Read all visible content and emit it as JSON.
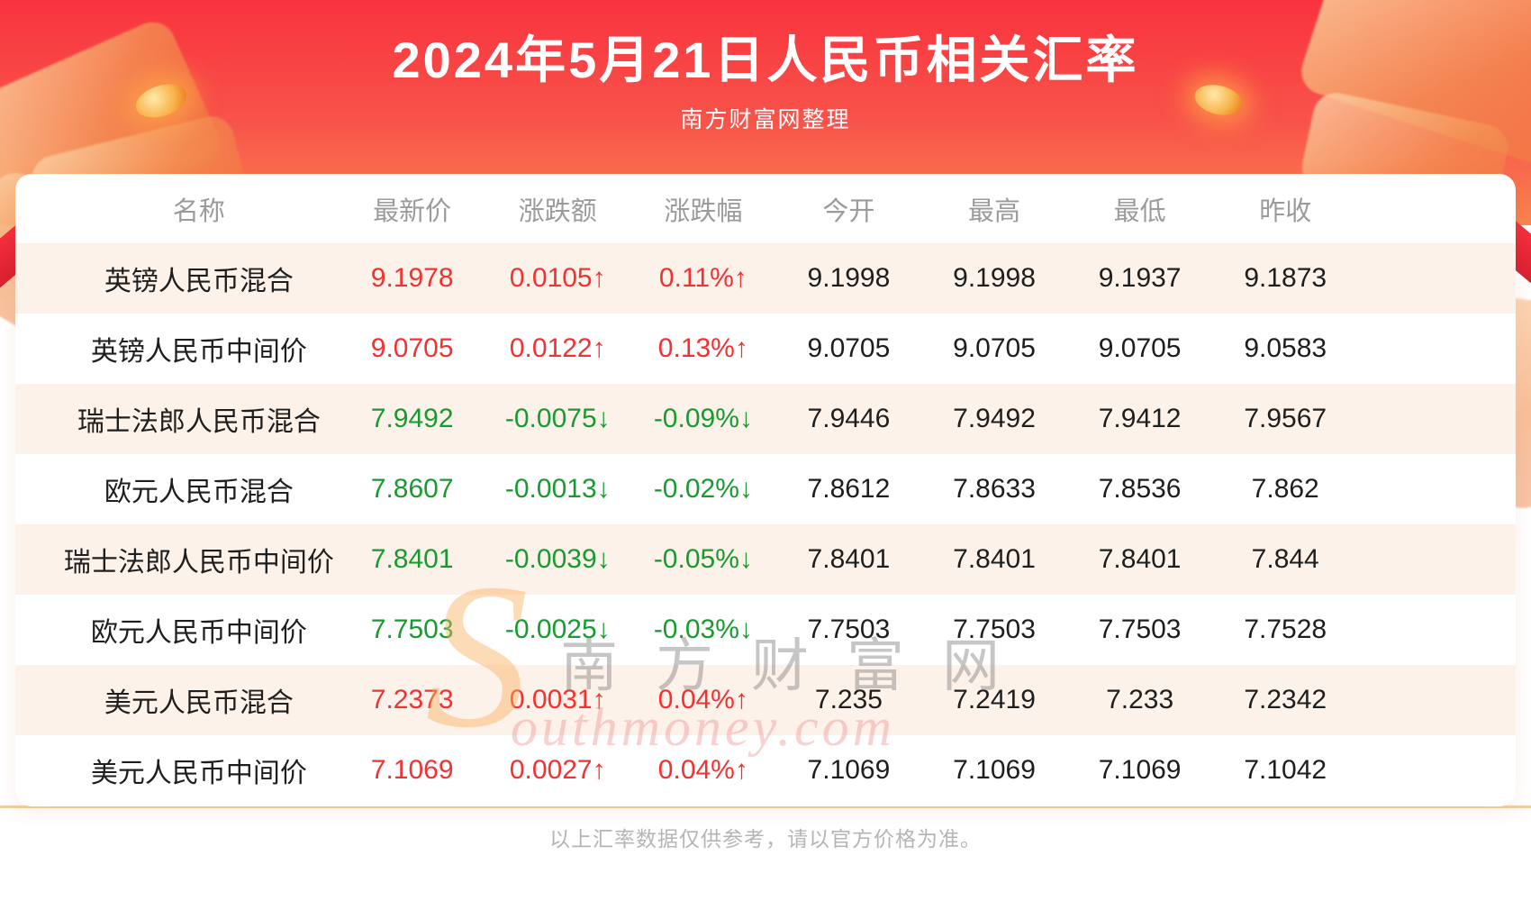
{
  "banner": {
    "title": "2024年5月21日人民币相关汇率",
    "subtitle": "南方财富网整理"
  },
  "watermark": {
    "swoosh": "S",
    "cjk": "南方财富网",
    "latin": "outhmoney.com"
  },
  "footer": {
    "disclaimer": "以上汇率数据仅供参考，请以官方价格为准。"
  },
  "colors": {
    "up": "#f33131",
    "down": "#189b2e",
    "stripe": "#fdf2ea",
    "divider": "#f6cd9c",
    "header_text": "#9b9b9b",
    "body_text": "#1e1e1e",
    "footer_text": "#b5b5b5",
    "banner_top": "#f9333e",
    "banner_bottom": "#f9854f"
  },
  "chart_data": {
    "type": "table",
    "title": "2024年5月21日人民币相关汇率",
    "columns": [
      "名称",
      "最新价",
      "涨跌额",
      "涨跌幅",
      "今开",
      "最高",
      "最低",
      "昨收"
    ],
    "rows": [
      {
        "name": "英镑人民币混合",
        "latest": "9.1978",
        "change": "0.0105↑",
        "change_pct": "0.11%↑",
        "open": "9.1998",
        "high": "9.1998",
        "low": "9.1937",
        "prev_close": "9.1873",
        "direction": "up"
      },
      {
        "name": "英镑人民币中间价",
        "latest": "9.0705",
        "change": "0.0122↑",
        "change_pct": "0.13%↑",
        "open": "9.0705",
        "high": "9.0705",
        "low": "9.0705",
        "prev_close": "9.0583",
        "direction": "up"
      },
      {
        "name": "瑞士法郎人民币混合",
        "latest": "7.9492",
        "change": "-0.0075↓",
        "change_pct": "-0.09%↓",
        "open": "7.9446",
        "high": "7.9492",
        "low": "7.9412",
        "prev_close": "7.9567",
        "direction": "down"
      },
      {
        "name": "欧元人民币混合",
        "latest": "7.8607",
        "change": "-0.0013↓",
        "change_pct": "-0.02%↓",
        "open": "7.8612",
        "high": "7.8633",
        "low": "7.8536",
        "prev_close": "7.862",
        "direction": "down"
      },
      {
        "name": "瑞士法郎人民币中间价",
        "latest": "7.8401",
        "change": "-0.0039↓",
        "change_pct": "-0.05%↓",
        "open": "7.8401",
        "high": "7.8401",
        "low": "7.8401",
        "prev_close": "7.844",
        "direction": "down"
      },
      {
        "name": "欧元人民币中间价",
        "latest": "7.7503",
        "change": "-0.0025↓",
        "change_pct": "-0.03%↓",
        "open": "7.7503",
        "high": "7.7503",
        "low": "7.7503",
        "prev_close": "7.7528",
        "direction": "down"
      },
      {
        "name": "美元人民币混合",
        "latest": "7.2373",
        "change": "0.0031↑",
        "change_pct": "0.04%↑",
        "open": "7.235",
        "high": "7.2419",
        "low": "7.233",
        "prev_close": "7.2342",
        "direction": "up"
      },
      {
        "name": "美元人民币中间价",
        "latest": "7.1069",
        "change": "0.0027↑",
        "change_pct": "0.04%↑",
        "open": "7.1069",
        "high": "7.1069",
        "low": "7.1069",
        "prev_close": "7.1042",
        "direction": "up"
      }
    ]
  }
}
